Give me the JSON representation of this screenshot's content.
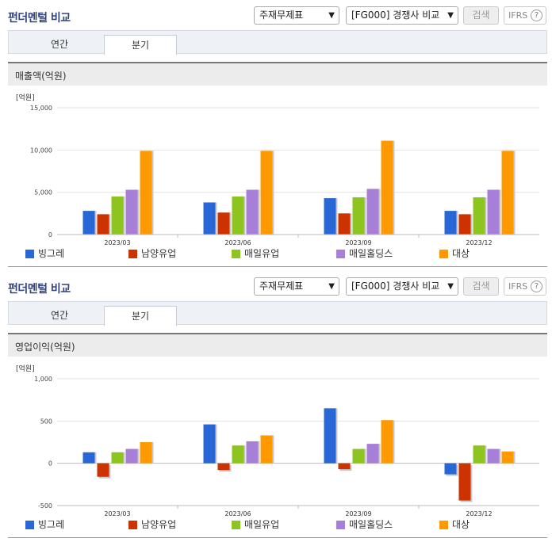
{
  "colors": {
    "title": "#33447a",
    "series": [
      "#2a67d6",
      "#cc3300",
      "#8dc420",
      "#a87fd8",
      "#ff9900"
    ]
  },
  "panels": [
    {
      "title": "펀더멘털 비교",
      "statement_select": "주재무제표",
      "compare_select": "[FG000] 경쟁사 비교",
      "search_label": "검색",
      "ifrs_label": "IFRS",
      "help_icon": "?",
      "tabs": [
        {
          "label": "연간"
        },
        {
          "label": "분기"
        }
      ],
      "metric_label": "매출액(억원)",
      "legend": [
        "빙그레",
        "남양유업",
        "매일유업",
        "매일홀딩스",
        "대상"
      ]
    },
    {
      "title": "펀더멘털 비교",
      "statement_select": "주재무제표",
      "compare_select": "[FG000] 경쟁사 비교",
      "search_label": "검색",
      "ifrs_label": "IFRS",
      "help_icon": "?",
      "tabs": [
        {
          "label": "연간"
        },
        {
          "label": "분기"
        }
      ],
      "metric_label": "영업이익(억원)",
      "legend": [
        "빙그레",
        "남양유업",
        "매일유업",
        "매일홀딩스",
        "대상"
      ]
    }
  ],
  "chart_data": [
    {
      "type": "bar",
      "unit_label": "[억원]",
      "categories": [
        "2023/03",
        "2023/06",
        "2023/09",
        "2023/12"
      ],
      "ylim": [
        0,
        15000
      ],
      "yticks": [
        0,
        5000,
        10000,
        15000
      ],
      "ytick_labels": [
        "0",
        "5,000",
        "10,000",
        "15,000"
      ],
      "series": [
        {
          "name": "빙그레",
          "values": [
            2800,
            3800,
            4300,
            2800
          ]
        },
        {
          "name": "남양유업",
          "values": [
            2400,
            2600,
            2500,
            2400
          ]
        },
        {
          "name": "매일유업",
          "values": [
            4500,
            4500,
            4400,
            4400
          ]
        },
        {
          "name": "매일홀딩스",
          "values": [
            5300,
            5300,
            5400,
            5300
          ]
        },
        {
          "name": "대상",
          "values": [
            9900,
            9900,
            11100,
            9900
          ]
        }
      ]
    },
    {
      "type": "bar",
      "unit_label": "[억원]",
      "categories": [
        "2023/03",
        "2023/06",
        "2023/09",
        "2023/12"
      ],
      "ylim": [
        -500,
        1000
      ],
      "yticks": [
        -500,
        0,
        500,
        1000
      ],
      "ytick_labels": [
        "-500",
        "0",
        "500",
        "1,000"
      ],
      "series": [
        {
          "name": "빙그레",
          "values": [
            130,
            460,
            650,
            -130
          ]
        },
        {
          "name": "남양유업",
          "values": [
            -160,
            -80,
            -70,
            -440
          ]
        },
        {
          "name": "매일유업",
          "values": [
            130,
            210,
            170,
            210
          ]
        },
        {
          "name": "매일홀딩스",
          "values": [
            170,
            260,
            230,
            170
          ]
        },
        {
          "name": "대상",
          "values": [
            250,
            330,
            510,
            140
          ]
        }
      ]
    }
  ]
}
